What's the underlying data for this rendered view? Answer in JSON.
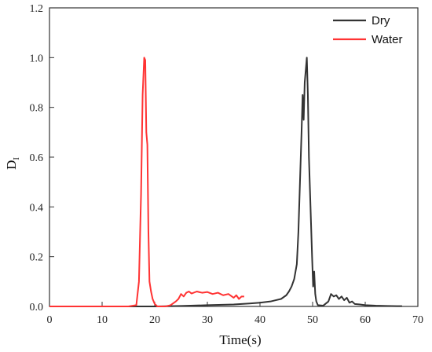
{
  "chart_data": {
    "type": "line",
    "title": "",
    "xlabel": "Time(s)",
    "ylabel_main": "D",
    "ylabel_sub": "I",
    "xlim": [
      0,
      70
    ],
    "ylim": [
      0,
      1.2
    ],
    "xticks": [
      "0",
      "10",
      "20",
      "30",
      "40",
      "50",
      "60",
      "70"
    ],
    "yticks": [
      "0.0",
      "0.2",
      "0.4",
      "0.6",
      "0.8",
      "1.0",
      "1.2"
    ],
    "grid": false,
    "legend_position": "top-right",
    "series": [
      {
        "name": "Dry",
        "color": "#333333",
        "x": [
          0,
          10,
          20,
          25,
          30,
          35,
          38,
          40,
          42,
          43,
          44,
          45,
          45.5,
          46,
          46.5,
          47,
          47.3,
          47.6,
          47.9,
          48.1,
          48.3,
          48.5,
          48.7,
          48.9,
          49.1,
          49.3,
          49.6,
          49.9,
          50.1,
          50.3,
          50.5,
          50.7,
          51,
          52,
          53,
          53.5,
          54,
          54.5,
          55,
          55.5,
          56,
          56.5,
          57,
          57.5,
          58,
          59,
          60,
          62,
          64,
          66,
          67
        ],
        "y": [
          0,
          0,
          0,
          0.002,
          0.005,
          0.008,
          0.012,
          0.015,
          0.02,
          0.025,
          0.03,
          0.045,
          0.06,
          0.08,
          0.11,
          0.17,
          0.3,
          0.5,
          0.7,
          0.85,
          0.75,
          0.9,
          0.95,
          1.0,
          0.85,
          0.6,
          0.4,
          0.2,
          0.08,
          0.14,
          0.05,
          0.02,
          0.005,
          0.003,
          0.02,
          0.05,
          0.04,
          0.045,
          0.03,
          0.04,
          0.025,
          0.035,
          0.015,
          0.02,
          0.01,
          0.008,
          0.005,
          0.003,
          0.002,
          0.001,
          0.001
        ]
      },
      {
        "name": "Water",
        "color": "#ff3333",
        "x": [
          0,
          10,
          15,
          16.5,
          17,
          17.4,
          17.7,
          18,
          18.2,
          18.4,
          18.6,
          18.8,
          19,
          19.3,
          19.6,
          20,
          20.5,
          22,
          23,
          24,
          24.5,
          25,
          25.5,
          26,
          26.5,
          27,
          28,
          29,
          30,
          31,
          32,
          33,
          34,
          35,
          35.5,
          36,
          36.5,
          37
        ],
        "y": [
          0,
          0,
          0,
          0.005,
          0.1,
          0.45,
          0.85,
          1.0,
          0.99,
          0.7,
          0.65,
          0.3,
          0.1,
          0.06,
          0.03,
          0.01,
          0.0,
          0.0,
          0.005,
          0.02,
          0.03,
          0.05,
          0.04,
          0.055,
          0.06,
          0.052,
          0.06,
          0.055,
          0.058,
          0.05,
          0.055,
          0.045,
          0.05,
          0.035,
          0.045,
          0.03,
          0.04,
          0.04
        ]
      }
    ]
  }
}
